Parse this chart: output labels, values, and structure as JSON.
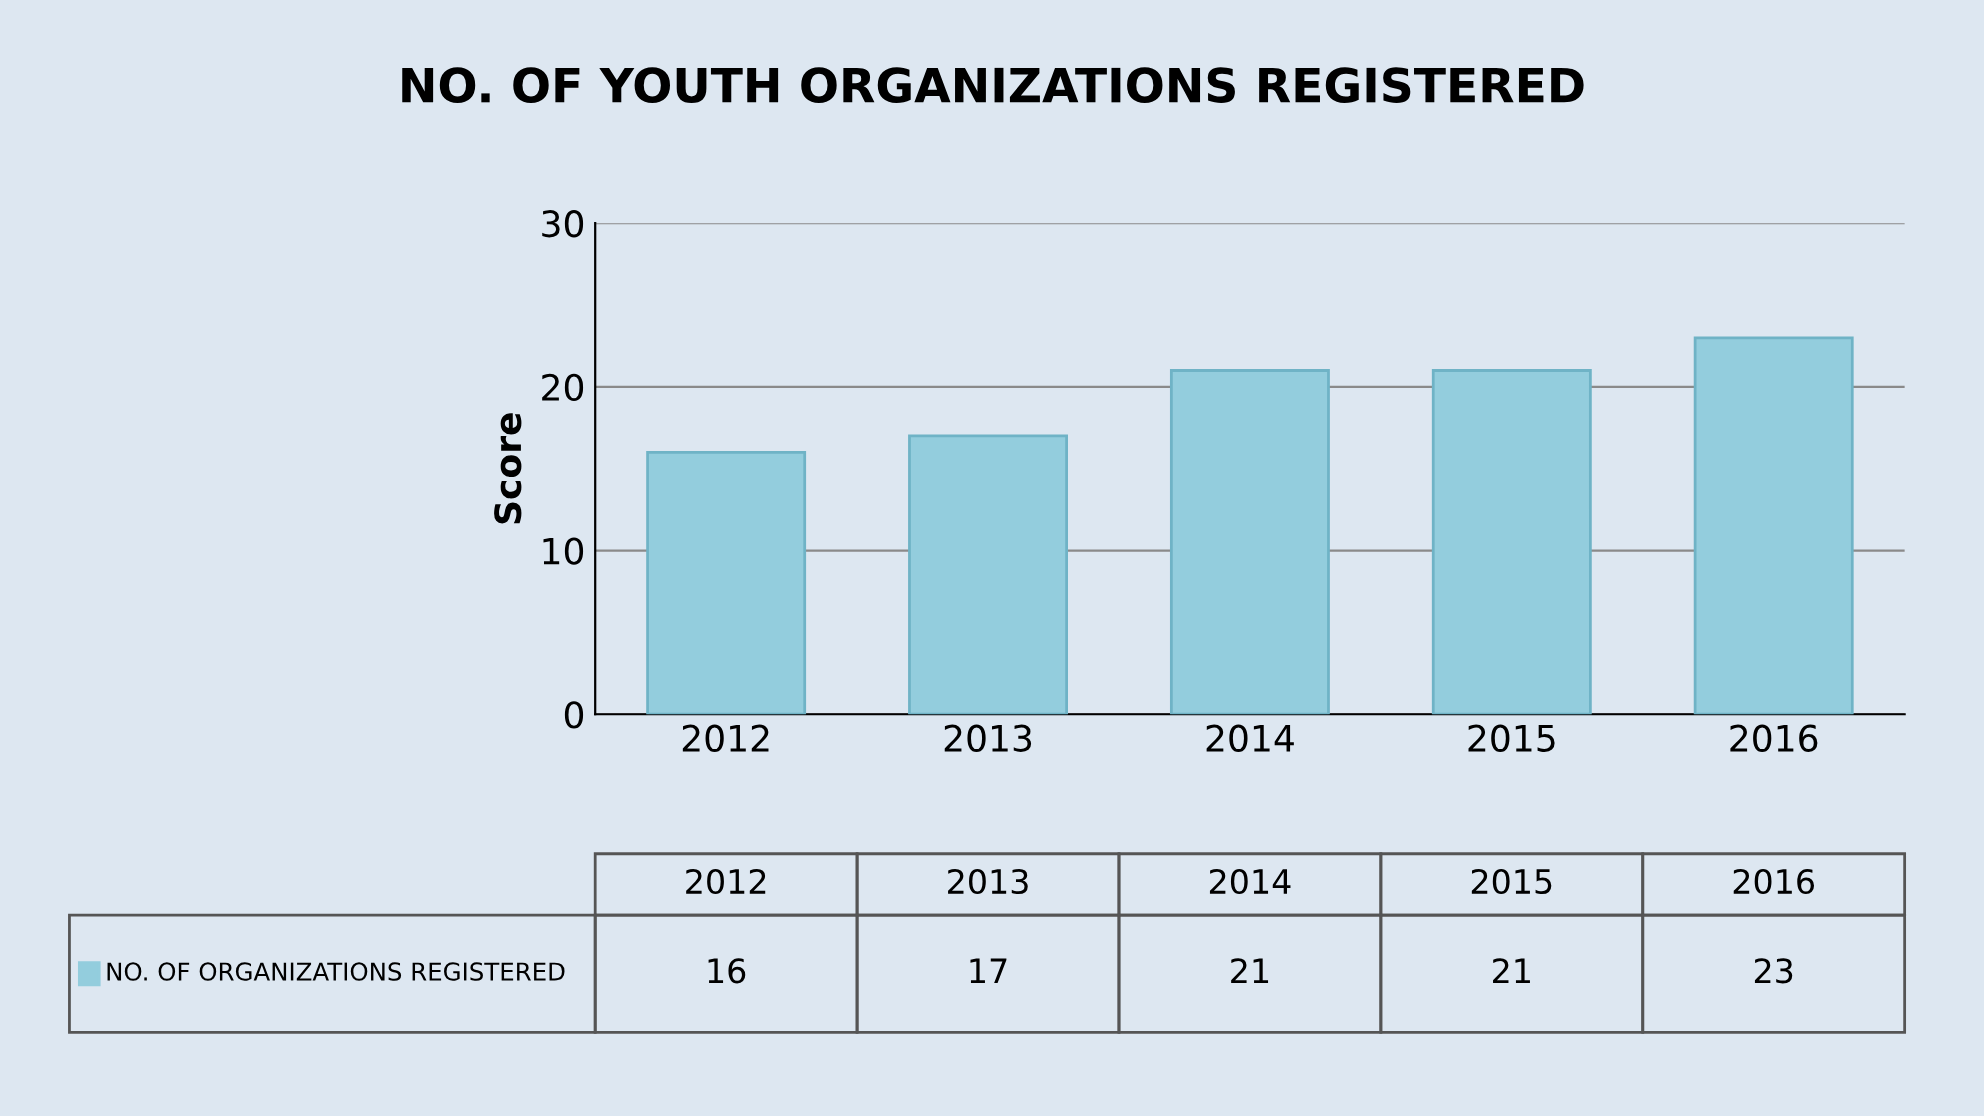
{
  "chart_data": {
    "type": "bar",
    "title": "NO. OF YOUTH ORGANIZATIONS REGISTERED",
    "ylabel": "Score",
    "categories": [
      "2012",
      "2013",
      "2014",
      "2015",
      "2016"
    ],
    "series": [
      {
        "name": "NO. OF ORGANIZATIONS REGISTERED",
        "color": "#93cddd",
        "values": [
          16,
          17,
          21,
          21,
          23
        ]
      }
    ],
    "ylim": [
      0,
      30
    ],
    "yticks": [
      0,
      10,
      20,
      30
    ],
    "grid": "y",
    "data_labels": true
  }
}
